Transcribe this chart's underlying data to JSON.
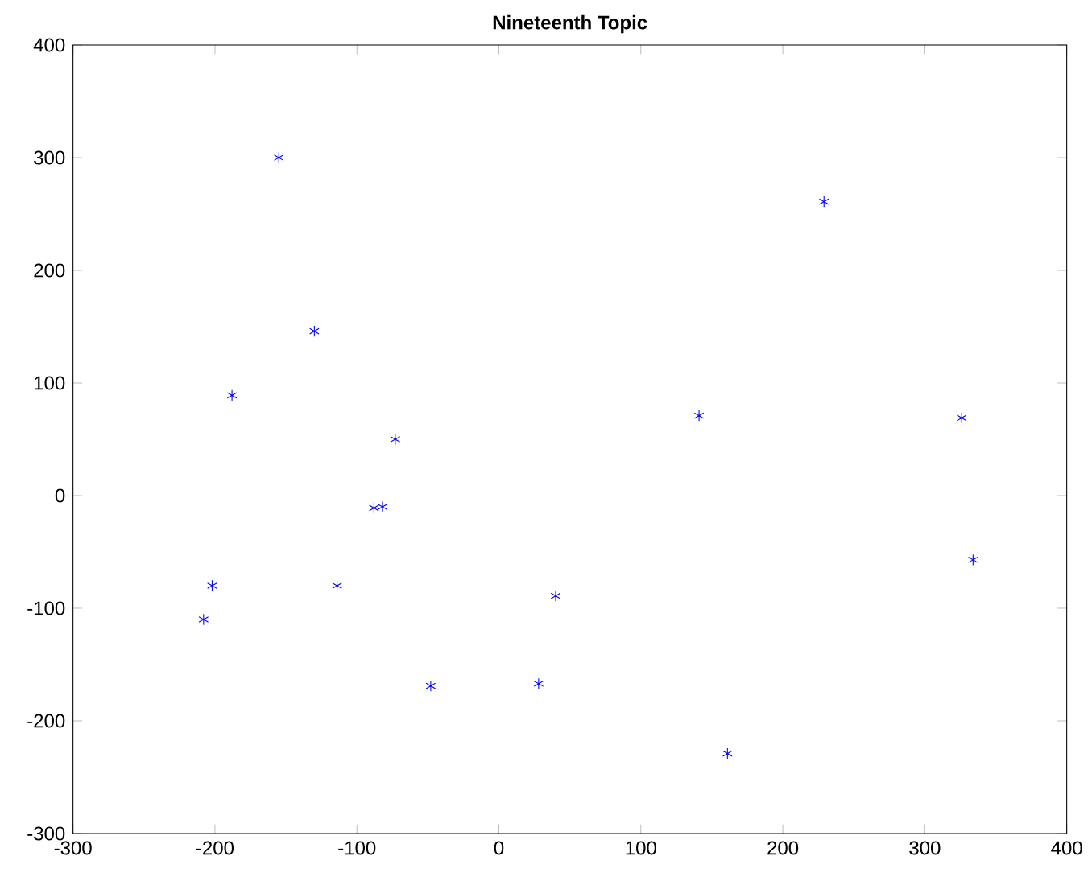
{
  "chart_data": {
    "type": "scatter",
    "title": "Nineteenth Topic",
    "xlim": [
      -300,
      400
    ],
    "ylim": [
      -300,
      400
    ],
    "xticks": [
      -300,
      -200,
      -100,
      0,
      100,
      200,
      300,
      400
    ],
    "yticks": [
      -300,
      -200,
      -100,
      0,
      100,
      200,
      300,
      400
    ],
    "grid": false,
    "marker": "cross",
    "series": [
      {
        "color": "#0000ff",
        "x": [
          -155,
          229,
          -130,
          -188,
          -73,
          141,
          326,
          -88,
          -82,
          334,
          -202,
          -114,
          40,
          -208,
          -48,
          28,
          161
        ],
        "values": [
          300,
          261,
          146,
          89,
          50,
          71,
          69,
          -11,
          -10,
          -57,
          -80,
          -80,
          -89,
          -110,
          -169,
          -167,
          -229
        ]
      }
    ]
  }
}
